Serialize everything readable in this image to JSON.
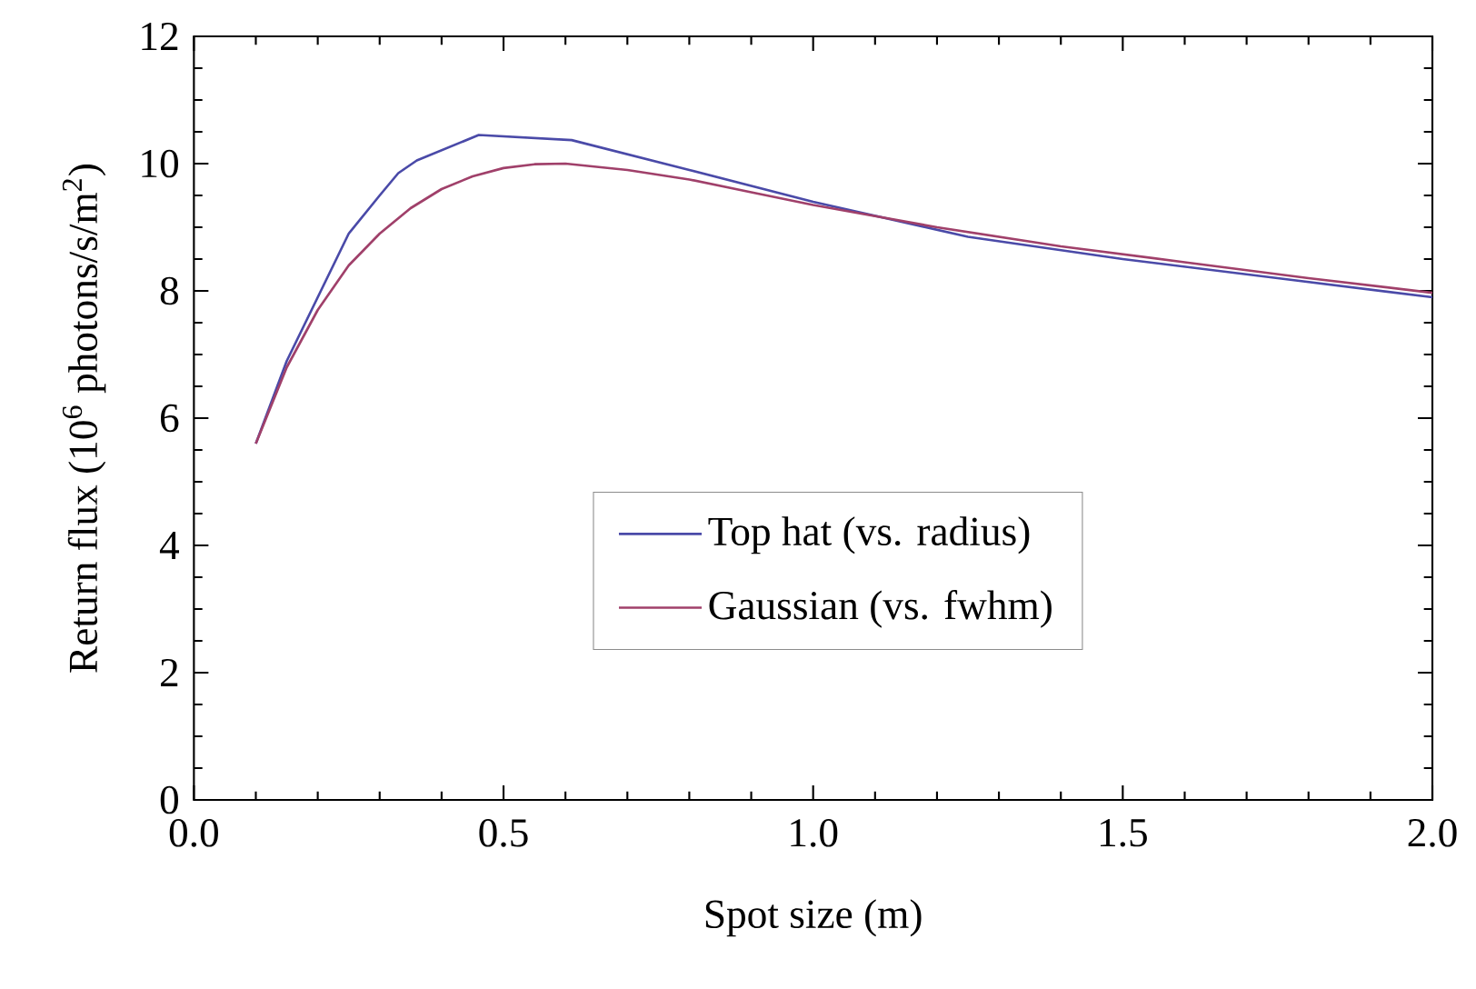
{
  "chart_data": {
    "type": "line",
    "xlabel": "Spot size (m)",
    "ylabel": "Return flux (10$^{6}$ photons/s/m$^{2}$)",
    "xlim": [
      0,
      2
    ],
    "ylim": [
      0,
      12
    ],
    "xticks": [
      {
        "value": 0,
        "label": "0.0"
      },
      0.5,
      {
        "value": 1,
        "label": "1.0"
      },
      1.5,
      {
        "value": 2,
        "label": "2.0"
      }
    ],
    "yticks": [
      0,
      2,
      4,
      6,
      8,
      10,
      12
    ],
    "grid": false,
    "legend": "center",
    "line_style": "solid",
    "marker": "none",
    "series": [
      {
        "name": "Top hat (vs. radius)",
        "color": "#4a4aa8",
        "x": [
          0.1,
          0.15,
          0.2,
          0.25,
          0.3,
          0.33,
          0.36,
          0.46,
          0.61,
          0.8,
          1.0,
          1.25,
          1.5,
          1.75,
          2.0
        ],
        "values": [
          5.6,
          6.9,
          7.9,
          8.9,
          9.5,
          9.85,
          10.05,
          10.45,
          10.37,
          9.9,
          9.4,
          8.85,
          8.5,
          8.2,
          7.9
        ]
      },
      {
        "name": "Gaussian (vs. fwhm)",
        "color": "#a0406a",
        "x": [
          0.1,
          0.15,
          0.2,
          0.25,
          0.3,
          0.35,
          0.4,
          0.45,
          0.5,
          0.55,
          0.6,
          0.7,
          0.8,
          0.9,
          1.0,
          1.2,
          1.4,
          1.6,
          1.8,
          2.0
        ],
        "values": [
          5.6,
          6.8,
          7.7,
          8.4,
          8.9,
          9.3,
          9.6,
          9.8,
          9.93,
          9.99,
          10.0,
          9.9,
          9.75,
          9.55,
          9.35,
          9.0,
          8.7,
          8.45,
          8.2,
          7.97
        ]
      }
    ]
  }
}
